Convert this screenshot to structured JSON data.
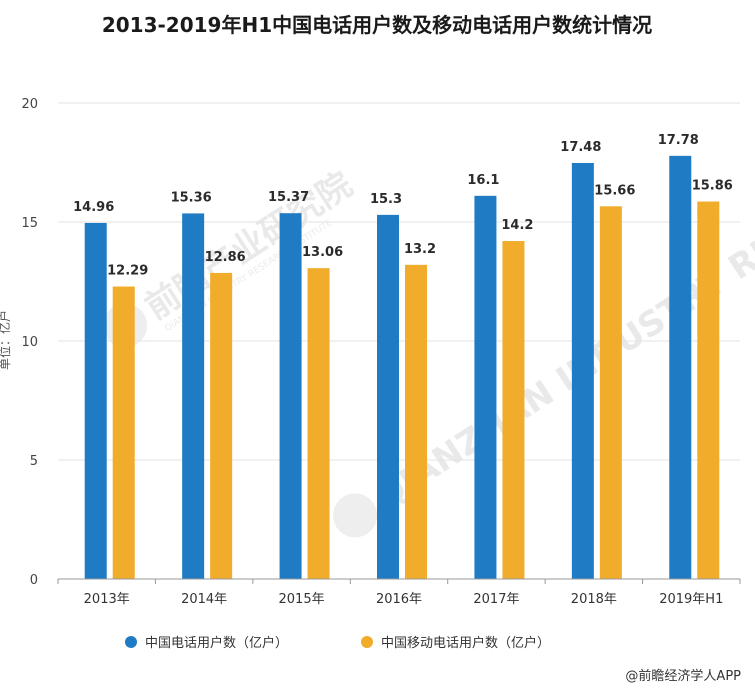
{
  "title": "2013-2019年H1中国电话用户数及移动电话用户数统计情况",
  "ylabel": "单位：亿户",
  "credit": "@前瞻经济学人APP",
  "watermark": {
    "text": "前瞻产业研究院",
    "subtext": "QIANZHAN INDUSTRY RESEARCH INSTITUTE"
  },
  "colors": {
    "series1": "#1f7cc4",
    "series2": "#f0ac2a",
    "grid": "#e3e3e3",
    "axis": "#999999"
  },
  "chart_data": {
    "type": "bar",
    "title": "2013-2019年H1中国电话用户数及移动电话用户数统计情况",
    "categories": [
      "2013年",
      "2014年",
      "2015年",
      "2016年",
      "2017年",
      "2018年",
      "2019年H1"
    ],
    "series": [
      {
        "name": "中国电话用户数（亿户）",
        "values": [
          14.96,
          15.36,
          15.37,
          15.3,
          16.1,
          17.48,
          17.78
        ]
      },
      {
        "name": "中国移动电话用户数（亿户）",
        "values": [
          12.29,
          12.86,
          13.06,
          13.2,
          14.2,
          15.66,
          15.86
        ]
      }
    ],
    "ylim": [
      0,
      20
    ],
    "yticks": [
      0,
      5,
      10,
      15,
      20
    ],
    "grid": true,
    "legend": "bottom"
  }
}
